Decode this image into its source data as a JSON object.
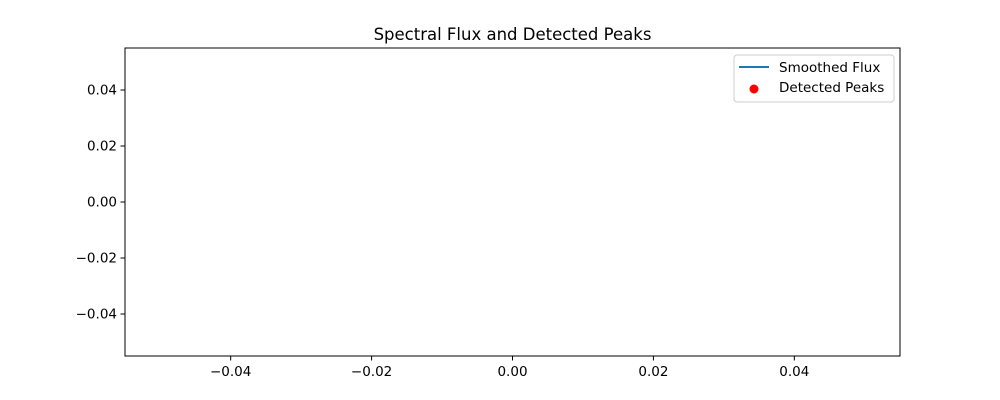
{
  "chart_data": {
    "type": "line",
    "title": "Spectral Flux and Detected Peaks",
    "xlabel": "",
    "ylabel": "",
    "xlim": [
      -0.055,
      0.055
    ],
    "ylim": [
      -0.055,
      0.055
    ],
    "x_ticks": [
      {
        "value": -0.04,
        "label": "−0.04"
      },
      {
        "value": -0.02,
        "label": "−0.02"
      },
      {
        "value": 0.0,
        "label": "0.00"
      },
      {
        "value": 0.02,
        "label": "0.02"
      },
      {
        "value": 0.04,
        "label": "0.04"
      }
    ],
    "y_ticks": [
      {
        "value": -0.04,
        "label": "−0.04"
      },
      {
        "value": -0.02,
        "label": "−0.02"
      },
      {
        "value": 0.0,
        "label": "0.00"
      },
      {
        "value": 0.02,
        "label": "0.02"
      },
      {
        "value": 0.04,
        "label": "0.04"
      }
    ],
    "grid": false,
    "legend_position": "top-right",
    "series": [
      {
        "name": "Smoothed Flux",
        "kind": "line",
        "color": "#1f77b4",
        "x": [],
        "y": []
      },
      {
        "name": "Detected Peaks",
        "kind": "scatter",
        "color": "#ff0000",
        "x": [],
        "y": []
      }
    ]
  }
}
